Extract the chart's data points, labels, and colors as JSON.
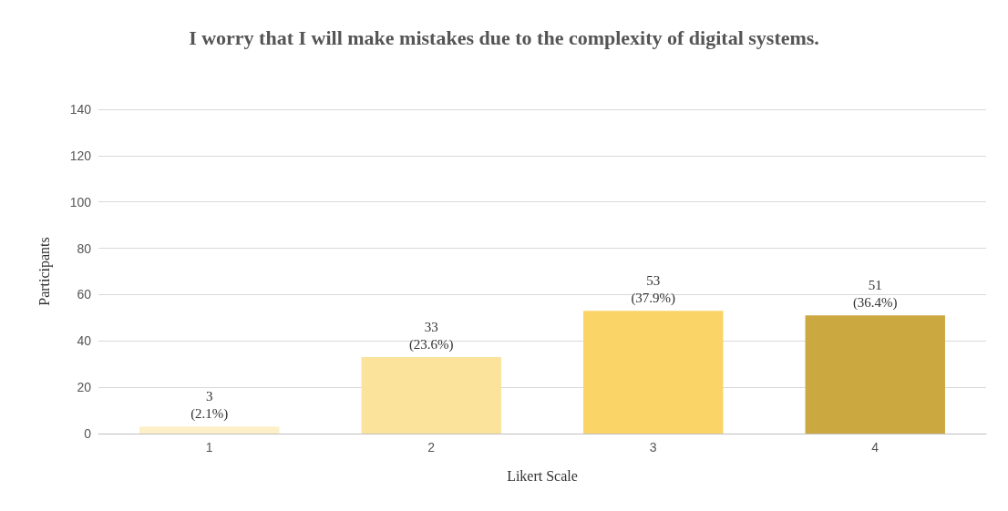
{
  "chart_data": {
    "type": "bar",
    "title": "I worry that I will make mistakes due to the complexity of digital systems.",
    "xlabel": "Likert Scale",
    "ylabel": "Participants",
    "categories": [
      "1",
      "2",
      "3",
      "4"
    ],
    "values": [
      3,
      33,
      53,
      51
    ],
    "colors": [
      "#fdf0c8",
      "#fbe39b",
      "#fbd467",
      "#cca840"
    ],
    "value_labels": [
      "3\n(2.1%)",
      "33\n(23.6%)",
      "53\n(37.9%)",
      "51\n(36.4%)"
    ],
    "ylim": [
      0,
      140
    ],
    "yticks": [
      0,
      20,
      40,
      60,
      80,
      100,
      120,
      140
    ],
    "grid": "y"
  }
}
